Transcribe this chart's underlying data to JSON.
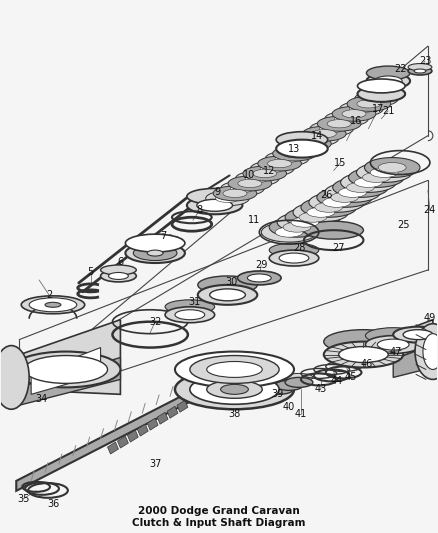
{
  "title": "2000 Dodge Grand Caravan\nClutch & Input Shaft Diagram",
  "background_color": "#f5f5f5",
  "line_color": "#333333",
  "text_color": "#111111",
  "fig_width": 4.39,
  "fig_height": 5.33,
  "dpi": 100,
  "gray_light": "#d8d8d8",
  "gray_mid": "#aaaaaa",
  "gray_dark": "#777777",
  "white": "#ffffff"
}
